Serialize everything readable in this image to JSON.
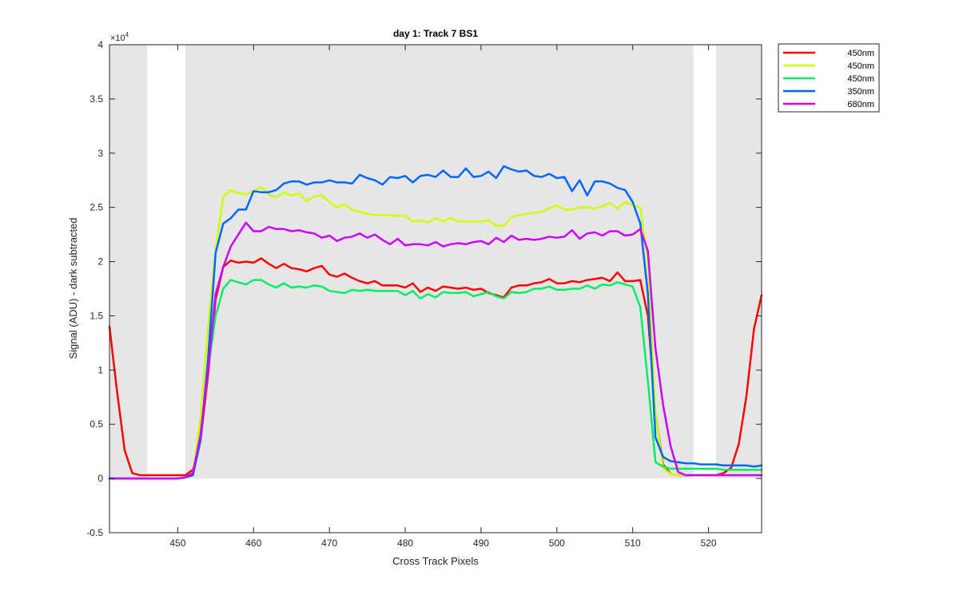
{
  "chart_data": {
    "type": "line",
    "title": "day 1: Track 7  BS1",
    "xlabel": "Cross Track Pixels",
    "ylabel": "Signal (ADU) - dark subtracted",
    "y_exponent_label": "×10",
    "y_exponent_power": "4",
    "xlim": [
      441,
      527
    ],
    "ylim": [
      -5000,
      40000
    ],
    "x_ticks": [
      450,
      460,
      470,
      480,
      490,
      500,
      510,
      520
    ],
    "x_tick_labels": [
      "450",
      "460",
      "470",
      "480",
      "490",
      "500",
      "510",
      "520"
    ],
    "y_ticks": [
      -5000,
      0,
      5000,
      10000,
      15000,
      20000,
      25000,
      30000,
      35000,
      40000
    ],
    "y_tick_labels": [
      "-0.5",
      "0",
      "0.5",
      "1",
      "1.5",
      "2",
      "2.5",
      "3",
      "3.5",
      "4"
    ],
    "grid": false,
    "legend_position": "outside-top-right",
    "shaded_regions": [
      {
        "x0": 441,
        "x1": 446,
        "y0": 0,
        "y1": 40000,
        "color": "#e6e6e6"
      },
      {
        "x0": 451,
        "x1": 518,
        "y0": 0,
        "y1": 40000,
        "color": "#e6e6e6"
      },
      {
        "x0": 521,
        "x1": 527,
        "y0": 0,
        "y1": 40000,
        "color": "#e6e6e6"
      }
    ],
    "series": [
      {
        "name": "450nm",
        "color": "#ff0000",
        "x": [
          441,
          442,
          443,
          444,
          445,
          446,
          447,
          448,
          449,
          450,
          451,
          452,
          453,
          454,
          455,
          456,
          457,
          458,
          459,
          460,
          461,
          462,
          463,
          464,
          465,
          466,
          467,
          468,
          469,
          470,
          471,
          472,
          473,
          474,
          475,
          476,
          477,
          478,
          479,
          480,
          481,
          482,
          483,
          484,
          485,
          486,
          487,
          488,
          489,
          490,
          491,
          492,
          493,
          494,
          495,
          496,
          497,
          498,
          499,
          500,
          501,
          502,
          503,
          504,
          505,
          506,
          507,
          508,
          509,
          510,
          511,
          512,
          513,
          514,
          515,
          516,
          517,
          518,
          519,
          520,
          521,
          522,
          523,
          524,
          525,
          526,
          527
        ],
        "y": [
          14000,
          8000,
          2600,
          500,
          300,
          300,
          300,
          300,
          300,
          300,
          300,
          800,
          3500,
          9500,
          16500,
          19500,
          20100,
          19900,
          20000,
          19900,
          20300,
          19800,
          19400,
          19800,
          19400,
          19300,
          19100,
          19400,
          19600,
          18800,
          18600,
          18900,
          18500,
          18200,
          18000,
          18200,
          17800,
          17800,
          17800,
          17600,
          18000,
          17200,
          17600,
          17300,
          17700,
          17600,
          17500,
          17600,
          17400,
          17500,
          17100,
          16900,
          16700,
          17600,
          17800,
          17800,
          18000,
          18100,
          18400,
          18000,
          18000,
          18200,
          18100,
          18300,
          18400,
          18500,
          18200,
          19000,
          18200,
          18200,
          18300,
          15000,
          6000,
          1300,
          400,
          300,
          300,
          300,
          300,
          300,
          300,
          500,
          1000,
          3200,
          7600,
          13800,
          16900
        ]
      },
      {
        "name": "450nm",
        "color": "#ccff00",
        "x": [
          441,
          442,
          443,
          444,
          445,
          446,
          447,
          448,
          449,
          450,
          451,
          452,
          453,
          454,
          455,
          456,
          457,
          458,
          459,
          460,
          461,
          462,
          463,
          464,
          465,
          466,
          467,
          468,
          469,
          470,
          471,
          472,
          473,
          474,
          475,
          476,
          477,
          478,
          479,
          480,
          481,
          482,
          483,
          484,
          485,
          486,
          487,
          488,
          489,
          490,
          491,
          492,
          493,
          494,
          495,
          496,
          497,
          498,
          499,
          500,
          501,
          502,
          503,
          504,
          505,
          506,
          507,
          508,
          509,
          510,
          511,
          512,
          513,
          514,
          515,
          516,
          517,
          518,
          519,
          520,
          521,
          522,
          523,
          524,
          525,
          526,
          527
        ],
        "y": [
          0,
          0,
          0,
          0,
          0,
          0,
          0,
          0,
          0,
          0,
          100,
          500,
          5500,
          14000,
          21000,
          26000,
          26600,
          26300,
          26200,
          26500,
          26900,
          26200,
          25900,
          26400,
          26100,
          26300,
          25600,
          26000,
          26100,
          25500,
          25000,
          25300,
          24800,
          24600,
          24400,
          24300,
          24300,
          24300,
          24200,
          24200,
          23700,
          23800,
          23600,
          24000,
          23700,
          24000,
          23700,
          23700,
          23700,
          23700,
          23800,
          23300,
          23300,
          24100,
          24300,
          24400,
          24500,
          24600,
          24900,
          25200,
          24800,
          24800,
          25000,
          25000,
          24900,
          25100,
          25400,
          24900,
          25500,
          25200,
          25000,
          20000,
          6000,
          1000,
          400,
          300,
          300,
          300,
          300,
          300,
          300,
          300,
          300,
          300,
          300,
          300,
          300
        ]
      },
      {
        "name": "450nm",
        "color": "#00ee66",
        "x": [
          441,
          442,
          443,
          444,
          445,
          446,
          447,
          448,
          449,
          450,
          451,
          452,
          453,
          454,
          455,
          456,
          457,
          458,
          459,
          460,
          461,
          462,
          463,
          464,
          465,
          466,
          467,
          468,
          469,
          470,
          471,
          472,
          473,
          474,
          475,
          476,
          477,
          478,
          479,
          480,
          481,
          482,
          483,
          484,
          485,
          486,
          487,
          488,
          489,
          490,
          491,
          492,
          493,
          494,
          495,
          496,
          497,
          498,
          499,
          500,
          501,
          502,
          503,
          504,
          505,
          506,
          507,
          508,
          509,
          510,
          511,
          512,
          513,
          514,
          515,
          516,
          517,
          518,
          519,
          520,
          521,
          522,
          523,
          524,
          525,
          526,
          527
        ],
        "y": [
          0,
          0,
          0,
          0,
          0,
          0,
          0,
          0,
          0,
          0,
          100,
          500,
          4000,
          10000,
          15000,
          17500,
          18300,
          18100,
          17900,
          18300,
          18300,
          17900,
          17600,
          18000,
          17600,
          17700,
          17600,
          17800,
          17700,
          17300,
          17200,
          17100,
          17400,
          17300,
          17400,
          17300,
          17300,
          17300,
          17300,
          16900,
          17300,
          16600,
          17000,
          16700,
          17200,
          17100,
          17100,
          17200,
          16800,
          17000,
          17200,
          16800,
          16600,
          17200,
          17100,
          17200,
          17500,
          17500,
          17700,
          17400,
          17400,
          17500,
          17500,
          17800,
          17500,
          17900,
          17800,
          18100,
          17900,
          17700,
          15800,
          9000,
          1500,
          1100,
          900,
          900,
          900,
          900,
          900,
          900,
          900,
          800,
          800,
          800,
          800,
          800,
          800
        ]
      },
      {
        "name": "350nm",
        "color": "#0066ff",
        "x": [
          441,
          442,
          443,
          444,
          445,
          446,
          447,
          448,
          449,
          450,
          451,
          452,
          453,
          454,
          455,
          456,
          457,
          458,
          459,
          460,
          461,
          462,
          463,
          464,
          465,
          466,
          467,
          468,
          469,
          470,
          471,
          472,
          473,
          474,
          475,
          476,
          477,
          478,
          479,
          480,
          481,
          482,
          483,
          484,
          485,
          486,
          487,
          488,
          489,
          490,
          491,
          492,
          493,
          494,
          495,
          496,
          497,
          498,
          499,
          500,
          501,
          502,
          503,
          504,
          505,
          506,
          507,
          508,
          509,
          510,
          511,
          512,
          513,
          514,
          515,
          516,
          517,
          518,
          519,
          520,
          521,
          522,
          523,
          524,
          525,
          526,
          527
        ],
        "y": [
          0,
          0,
          0,
          0,
          0,
          0,
          0,
          0,
          0,
          0,
          100,
          300,
          3500,
          11000,
          20800,
          23500,
          24000,
          24800,
          24800,
          26500,
          26400,
          26400,
          26600,
          27200,
          27400,
          27400,
          27100,
          27300,
          27300,
          27500,
          27300,
          27300,
          27200,
          28000,
          27700,
          27500,
          27100,
          27800,
          27700,
          27900,
          27300,
          27900,
          28000,
          27800,
          28400,
          27800,
          27800,
          28600,
          27800,
          27900,
          28300,
          27700,
          28800,
          28500,
          28300,
          28400,
          27900,
          27800,
          28100,
          27700,
          27800,
          26500,
          27500,
          26100,
          27400,
          27400,
          27200,
          26800,
          26600,
          25500,
          23500,
          17000,
          3800,
          2000,
          1600,
          1500,
          1400,
          1400,
          1300,
          1300,
          1300,
          1200,
          1200,
          1200,
          1200,
          1100,
          1200
        ]
      },
      {
        "name": "680nm",
        "color": "#cc00ff",
        "x": [
          441,
          442,
          443,
          444,
          445,
          446,
          447,
          448,
          449,
          450,
          451,
          452,
          453,
          454,
          455,
          456,
          457,
          458,
          459,
          460,
          461,
          462,
          463,
          464,
          465,
          466,
          467,
          468,
          469,
          470,
          471,
          472,
          473,
          474,
          475,
          476,
          477,
          478,
          479,
          480,
          481,
          482,
          483,
          484,
          485,
          486,
          487,
          488,
          489,
          490,
          491,
          492,
          493,
          494,
          495,
          496,
          497,
          498,
          499,
          500,
          501,
          502,
          503,
          504,
          505,
          506,
          507,
          508,
          509,
          510,
          511,
          512,
          513,
          514,
          515,
          516,
          517,
          518,
          519,
          520,
          521,
          522,
          523,
          524,
          525,
          526,
          527
        ],
        "y": [
          0,
          0,
          0,
          0,
          0,
          0,
          0,
          0,
          0,
          0,
          100,
          500,
          4000,
          10000,
          17000,
          19500,
          21400,
          22500,
          23600,
          22800,
          22800,
          23200,
          23000,
          23000,
          22800,
          22900,
          22700,
          22600,
          22200,
          22400,
          21900,
          22200,
          22300,
          22600,
          22200,
          22500,
          22000,
          21600,
          22100,
          21500,
          21600,
          21600,
          21500,
          21800,
          21400,
          21600,
          21700,
          21600,
          21800,
          21900,
          21600,
          22200,
          21800,
          22400,
          22000,
          22100,
          22000,
          22100,
          22300,
          22200,
          22300,
          22900,
          22100,
          22600,
          22700,
          22400,
          22800,
          22800,
          22400,
          22500,
          23000,
          21000,
          12000,
          6800,
          3000,
          600,
          300,
          300,
          300,
          300,
          300,
          300,
          300,
          300,
          300,
          300,
          300
        ]
      }
    ]
  }
}
